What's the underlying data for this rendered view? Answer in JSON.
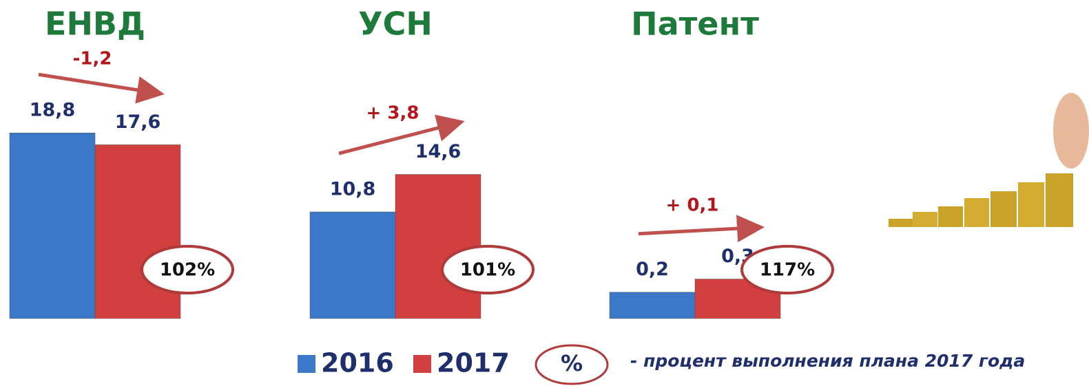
{
  "chart_data": [
    {
      "type": "bar",
      "title": "ЕНВД",
      "values": [
        18.8,
        17.6
      ],
      "value_labels": [
        "18,8",
        "17,6"
      ],
      "change": "-1,2",
      "plan": "102%",
      "ylim": [
        0,
        20
      ]
    },
    {
      "type": "bar",
      "title": "УСН",
      "values": [
        10.8,
        14.6
      ],
      "value_labels": [
        "10,8",
        "14,6"
      ],
      "change": "+ 3,8",
      "plan": "101%",
      "ylim": [
        0,
        20
      ]
    },
    {
      "type": "bar",
      "title": "Патент",
      "values": [
        0.2,
        0.3
      ],
      "value_labels": [
        "0,2",
        "0,3"
      ],
      "change": "+ 0,1",
      "plan": "117%",
      "ylim": [
        0,
        1.5
      ]
    }
  ],
  "legend": {
    "series": [
      {
        "name": "2016",
        "color": "#3b78c8"
      },
      {
        "name": "2017",
        "color": "#d23f3f"
      }
    ],
    "symbol": "%",
    "note": "- процент выполнения плана 2017 года"
  }
}
